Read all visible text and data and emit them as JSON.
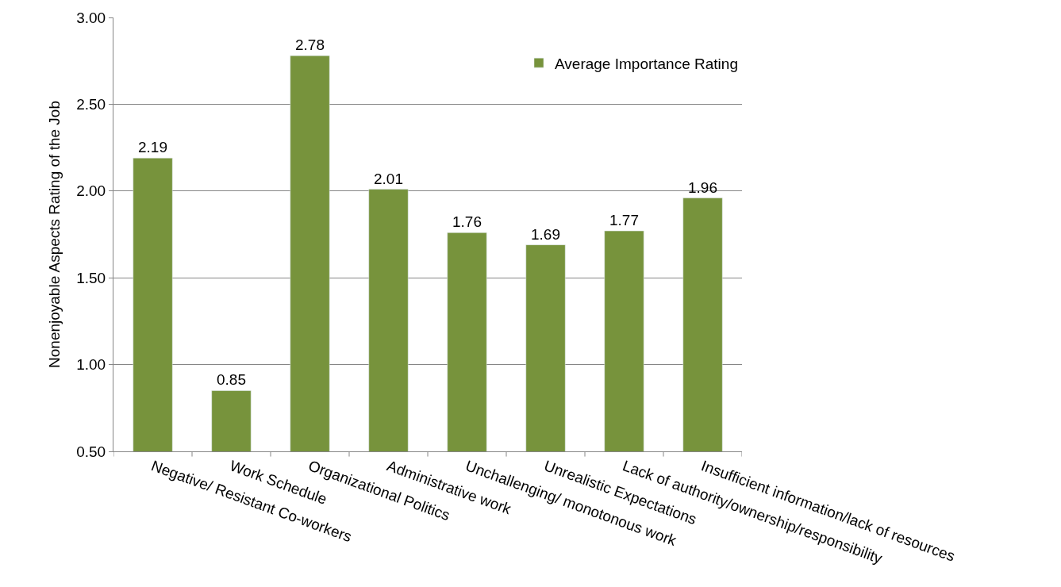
{
  "chart_data": {
    "type": "bar",
    "ylabel": "Nonenjoyable Aspects Rating of the Job",
    "categories": [
      "Negative/ Resistant Co-workers",
      "Work Schedule",
      "Organizational Politics",
      "Administrative work",
      "Unchallenging/ monotonous work",
      "Unrealistic Expectations",
      "Lack of authority/ownership/responsibility",
      "Insufficient information/lack of resources"
    ],
    "series": [
      {
        "name": "Average Importance Rating",
        "color": "#77933c",
        "values": [
          2.19,
          0.85,
          2.78,
          2.01,
          1.76,
          1.69,
          1.77,
          1.96
        ]
      }
    ],
    "ylim": [
      0.5,
      3.0
    ],
    "yticks": [
      {
        "value": 0.5,
        "label": "0.50"
      },
      {
        "value": 1.0,
        "label": "1.00"
      },
      {
        "value": 1.5,
        "label": "1.50"
      },
      {
        "value": 2.0,
        "label": "2.00"
      },
      {
        "value": 2.5,
        "label": "2.50"
      },
      {
        "value": 3.0,
        "label": "3.00"
      }
    ],
    "grid": "y",
    "legend": "top right",
    "data_labels": true
  }
}
